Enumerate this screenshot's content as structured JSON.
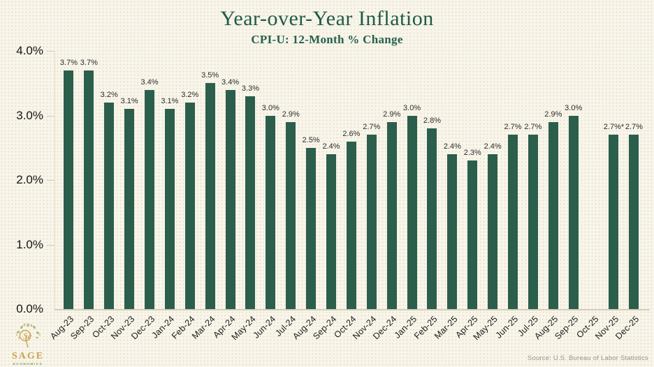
{
  "title": "Year-over-Year Inflation",
  "subtitle": "CPI-U: 12-Month % Change",
  "source": "Source: U.S. Bureau of Labor Statistics",
  "logo": {
    "brand": "SAGE",
    "sub": "ECONOMICS",
    "monogram": "Se"
  },
  "colors": {
    "bar": "#2c5e4c",
    "title": "#1e5a48",
    "background": "#f8f5eb",
    "axis": "#d6cfba",
    "value_label": "#2c2c2c",
    "source_text": "#9a948a",
    "logo_gold": "#c9a44f",
    "logo_green": "#7ba05b"
  },
  "y_axis": {
    "tick_labels": [
      "4.0%",
      "3.0%",
      "2.0%",
      "1.0%",
      "0.0%"
    ],
    "max": 4.0,
    "min": 0.0
  },
  "chart_data": {
    "type": "bar",
    "title": "Year-over-Year Inflation",
    "subtitle": "CPI-U: 12-Month % Change",
    "xlabel": "",
    "ylabel": "",
    "ylim": [
      0,
      4.0
    ],
    "grid": false,
    "categories": [
      "Aug-23",
      "Sep-23",
      "Oct-23",
      "Nov-23",
      "Dec-23",
      "Jan-24",
      "Feb-24",
      "Mar-24",
      "Apr-24",
      "May-24",
      "Jun-24",
      "Jul-24",
      "Aug-24",
      "Sep-24",
      "Oct-24",
      "Nov-24",
      "Dec-24",
      "Jan-25",
      "Feb-25",
      "Mar-25",
      "Apr-25",
      "May-25",
      "Jun-25",
      "Jul-25",
      "Aug-25",
      "Sep-25",
      "Oct-25",
      "Nov-25",
      "Dec-25"
    ],
    "values": [
      3.7,
      3.7,
      3.2,
      3.1,
      3.4,
      3.1,
      3.2,
      3.5,
      3.4,
      3.3,
      3.0,
      2.9,
      2.5,
      2.4,
      2.6,
      2.7,
      2.9,
      3.0,
      2.8,
      2.4,
      2.3,
      2.4,
      2.7,
      2.7,
      2.9,
      3.0,
      null,
      2.7,
      2.7
    ],
    "value_labels": [
      "3.7%",
      "3.7%",
      "3.2%",
      "3.1%",
      "3.4%",
      "3.1%",
      "3.2%",
      "3.5%",
      "3.4%",
      "3.3%",
      "3.0%",
      "2.9%",
      "2.5%",
      "2.4%",
      "2.6%",
      "2.7%",
      "2.9%",
      "3.0%",
      "2.8%",
      "2.4%",
      "2.3%",
      "2.4%",
      "2.7%",
      "2.7%",
      "2.9%",
      "3.0%",
      "",
      "2.7%*",
      "2.7%"
    ]
  }
}
